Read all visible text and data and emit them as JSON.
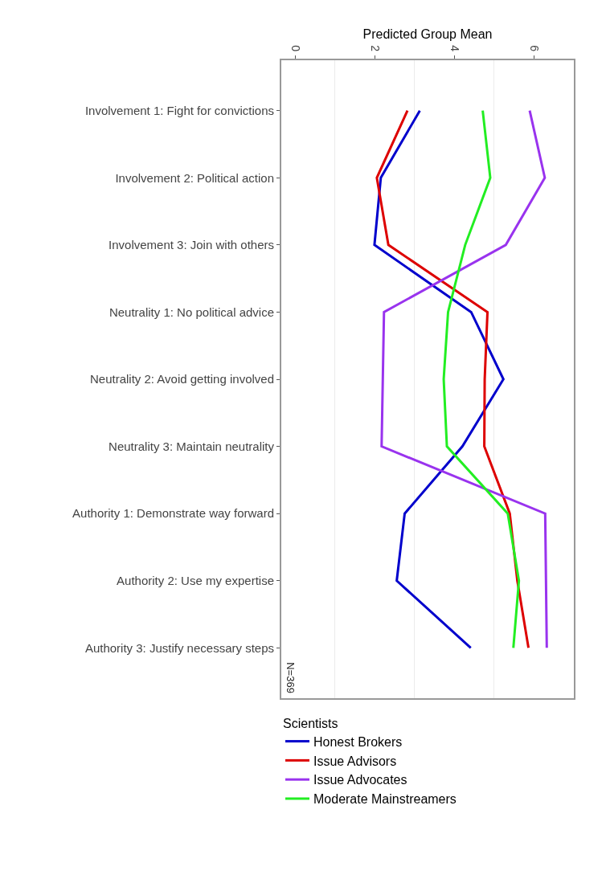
{
  "chart_data": {
    "type": "line",
    "orientation": "horizontal",
    "xlabel": "Predicted Group Mean",
    "legend_title": "Scientists",
    "legend": "bottom",
    "grid": "x",
    "marker": "none",
    "line_style": "solid",
    "categories": [
      "Involvement 1: Fight for convictions",
      "Involvement 2: Political action",
      "Involvement 3: Join with others",
      "Neutrality 1: No political advice",
      "Neutrality 2: Avoid getting involved",
      "Neutrality 3: Maintain neutrality",
      "Authority 1: Demonstrate way forward",
      "Authority 2: Use my expertise",
      "Authority 3: Justify necessary steps"
    ],
    "xlim": [
      -0.35,
      7.0
    ],
    "xticks": [
      0,
      2,
      4,
      6
    ],
    "annotations": [
      "N=369"
    ],
    "series": [
      {
        "name": "Honest Brokers",
        "color": "#0000cc",
        "values": [
          3.13,
          2.15,
          1.99,
          4.42,
          5.23,
          4.2,
          2.75,
          2.55,
          4.41
        ]
      },
      {
        "name": "Issue Advisors",
        "color": "#dd0000",
        "values": [
          2.82,
          2.05,
          2.34,
          4.83,
          4.76,
          4.75,
          5.39,
          5.58,
          5.86
        ]
      },
      {
        "name": "Issue Advocates",
        "color": "#9933ee",
        "values": [
          5.89,
          6.27,
          5.29,
          2.23,
          2.2,
          2.17,
          6.28,
          6.3,
          6.32
        ]
      },
      {
        "name": "Moderate Mainstreamers",
        "color": "#22ee22",
        "values": [
          4.71,
          4.9,
          4.27,
          3.84,
          3.73,
          3.81,
          5.34,
          5.62,
          5.48
        ]
      }
    ]
  }
}
